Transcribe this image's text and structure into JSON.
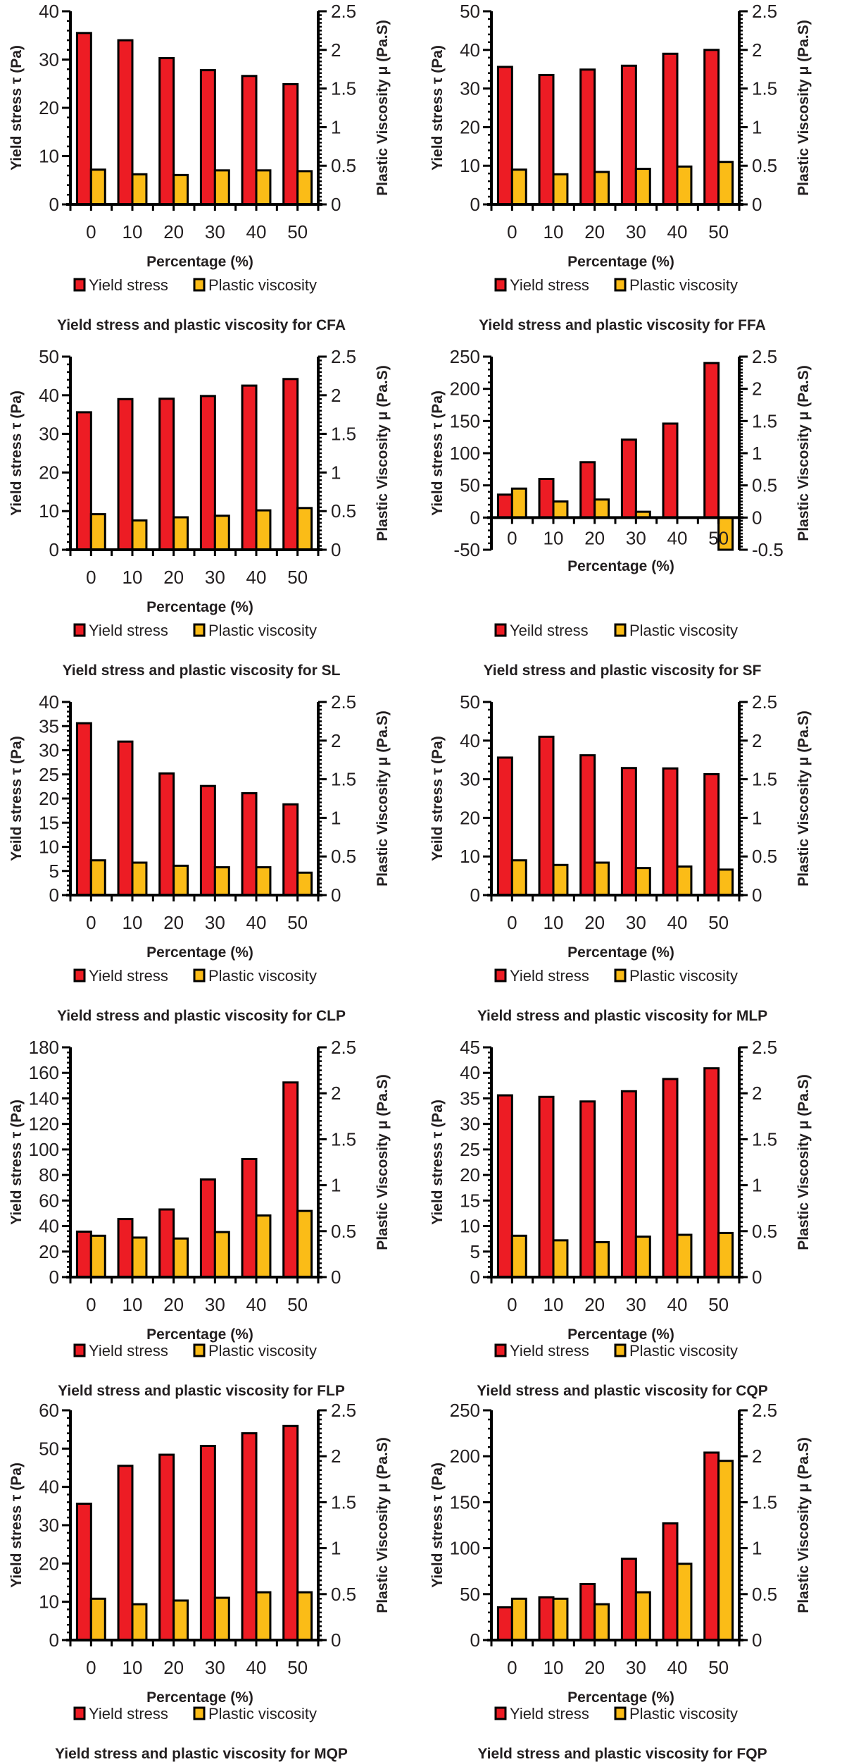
{
  "figure": {
    "colors": {
      "yield_stress": "#ed1c24",
      "plastic_viscosity": "#fbbc17",
      "outline": "#000000"
    }
  },
  "chart_data": [
    {
      "type": "bar",
      "title": "Yield stress and plastic viscosity for CFA",
      "xlabel": "Percentage (%)",
      "ylabel": "Yield stress τ (Pa)",
      "y2label": "Plastic Viscosity μ (Pa.S)",
      "categories": [
        "0",
        "10",
        "20",
        "30",
        "40",
        "50"
      ],
      "ylim": [
        0,
        40
      ],
      "yticks": [
        0,
        10,
        20,
        30,
        40
      ],
      "y2lim": [
        0,
        2.5
      ],
      "y2ticks": [
        0,
        0.5,
        1,
        1.5,
        2,
        2.5
      ],
      "legend_position": "bottom",
      "series": [
        {
          "name": "Yield stress",
          "axis": "left",
          "values": [
            35.5,
            34.0,
            30.3,
            27.8,
            26.6,
            24.9
          ]
        },
        {
          "name": "Plastic viscosity",
          "axis": "right",
          "values": [
            0.45,
            0.39,
            0.38,
            0.44,
            0.44,
            0.43
          ]
        }
      ]
    },
    {
      "type": "bar",
      "title": "Yield stress and plastic viscosity for FFA",
      "xlabel": "Percentage (%)",
      "ylabel": "Yield stress τ (Pa)",
      "y2label": "Plastic Viscosity μ (Pa.S)",
      "categories": [
        "0",
        "10",
        "20",
        "30",
        "40",
        "50"
      ],
      "ylim": [
        0,
        50
      ],
      "yticks": [
        0,
        10,
        20,
        30,
        40,
        50
      ],
      "y2lim": [
        0,
        2.5
      ],
      "y2ticks": [
        0,
        0.5,
        1,
        1.5,
        2,
        2.5
      ],
      "legend_position": "bottom",
      "series": [
        {
          "name": "Yield stress",
          "axis": "left",
          "values": [
            35.6,
            33.5,
            34.9,
            35.9,
            39.0,
            40.0
          ]
        },
        {
          "name": "Plastic viscosity",
          "axis": "right",
          "values": [
            0.45,
            0.39,
            0.42,
            0.46,
            0.49,
            0.55
          ]
        }
      ]
    },
    {
      "type": "bar",
      "title": "Yield stress and plastic viscosity for SL",
      "xlabel": "Percentage (%)",
      "ylabel": "Yield stress τ (Pa)",
      "y2label": "Plastic Viscosity μ (Pa.S)",
      "categories": [
        "0",
        "10",
        "20",
        "30",
        "40",
        "50"
      ],
      "ylim": [
        0,
        50
      ],
      "yticks": [
        0,
        10,
        20,
        30,
        40,
        50
      ],
      "y2lim": [
        0,
        2.5
      ],
      "y2ticks": [
        0,
        0.5,
        1,
        1.5,
        2,
        2.5
      ],
      "legend_position": "bottom",
      "series": [
        {
          "name": "Yield stress",
          "axis": "left",
          "values": [
            35.6,
            39.0,
            39.1,
            39.8,
            42.5,
            44.2
          ]
        },
        {
          "name": "Plastic viscosity",
          "axis": "right",
          "values": [
            0.46,
            0.38,
            0.42,
            0.44,
            0.51,
            0.54
          ]
        }
      ]
    },
    {
      "type": "bar",
      "title": "Yield stress and plastic viscosity for SF",
      "xlabel": "Percentage (%)",
      "ylabel": "Yield stress τ (Pa)",
      "y2label": "Plastic Viscosity μ (Pa.S)",
      "categories": [
        "0",
        "10",
        "20",
        "30",
        "40",
        "50"
      ],
      "ylim": [
        -50,
        250
      ],
      "yticks": [
        -50,
        0,
        50,
        100,
        150,
        200,
        250
      ],
      "y2lim": [
        -0.5,
        2.5
      ],
      "y2ticks": [
        -0.5,
        0,
        0.5,
        1,
        1.5,
        2,
        2.5
      ],
      "legend_position": "bottom",
      "series": [
        {
          "name": "Yeild stress",
          "axis": "left",
          "values": [
            35.6,
            60.0,
            86.0,
            121.0,
            146.0,
            240.0
          ]
        },
        {
          "name": "Plastic viscosity",
          "axis": "right",
          "values": [
            0.45,
            0.25,
            0.28,
            0.09,
            0.0,
            -0.5
          ]
        }
      ]
    },
    {
      "type": "bar",
      "title": "Yield stress and plastic viscosity for CLP",
      "xlabel": "Percentage (%)",
      "ylabel": "Yeild stress τ (Pa)",
      "y2label": "Plastic Viscosity μ (Pa.S)",
      "categories": [
        "0",
        "10",
        "20",
        "30",
        "40",
        "50"
      ],
      "ylim": [
        0,
        40
      ],
      "yticks": [
        0,
        5,
        10,
        15,
        20,
        25,
        30,
        35,
        40
      ],
      "y2lim": [
        0,
        2.5
      ],
      "y2ticks": [
        0,
        0.5,
        1,
        1.5,
        2,
        2.5
      ],
      "legend_position": "bottom",
      "series": [
        {
          "name": "Yield stress",
          "axis": "left",
          "values": [
            35.6,
            31.8,
            25.2,
            22.6,
            21.1,
            18.8
          ]
        },
        {
          "name": "Plastic viscosity",
          "axis": "right",
          "values": [
            0.45,
            0.42,
            0.38,
            0.36,
            0.36,
            0.29
          ]
        }
      ]
    },
    {
      "type": "bar",
      "title": "Yield stress and plastic viscosity for MLP",
      "xlabel": "Percentage (%)",
      "ylabel": "Yeild stress τ (Pa)",
      "y2label": "Plastic Viscosity μ (Pa.S)",
      "categories": [
        "0",
        "10",
        "20",
        "30",
        "40",
        "50"
      ],
      "ylim": [
        0,
        50
      ],
      "yticks": [
        0,
        10,
        20,
        30,
        40,
        50
      ],
      "y2lim": [
        0,
        2.5
      ],
      "y2ticks": [
        0,
        0.5,
        1,
        1.5,
        2,
        2.5
      ],
      "legend_position": "bottom",
      "series": [
        {
          "name": "Yield stress",
          "axis": "left",
          "values": [
            35.6,
            41.0,
            36.2,
            32.9,
            32.8,
            31.3
          ]
        },
        {
          "name": "Plastic viscosity",
          "axis": "right",
          "values": [
            0.45,
            0.39,
            0.42,
            0.35,
            0.37,
            0.33
          ]
        }
      ]
    },
    {
      "type": "bar",
      "title": "Yield stress and plastic viscosity for FLP",
      "xlabel": "Percentage (%)",
      "ylabel": "Yield stress τ (Pa)",
      "y2label": "Plastic Viscosity μ (Pa.S)",
      "categories": [
        "0",
        "10",
        "20",
        "30",
        "40",
        "50"
      ],
      "ylim": [
        0,
        180
      ],
      "yticks": [
        0,
        20,
        40,
        60,
        80,
        100,
        120,
        140,
        160,
        180
      ],
      "y2lim": [
        0,
        2.5
      ],
      "y2ticks": [
        0,
        0.5,
        1,
        1.5,
        2,
        2.5
      ],
      "legend_position": "bottom",
      "series": [
        {
          "name": "Yield stress",
          "axis": "left",
          "values": [
            35.6,
            45.5,
            53.0,
            76.5,
            92.5,
            152.5
          ]
        },
        {
          "name": "Plastic viscosity",
          "axis": "right",
          "values": [
            0.45,
            0.43,
            0.42,
            0.49,
            0.67,
            0.72
          ]
        }
      ]
    },
    {
      "type": "bar",
      "title": "Yield stress and plastic viscosity for CQP",
      "xlabel": "Percentage (%)",
      "ylabel": "Yield stress τ (Pa)",
      "y2label": "Plastic Viscosity μ (Pa.S)",
      "categories": [
        "0",
        "10",
        "20",
        "30",
        "40",
        "50"
      ],
      "ylim": [
        0,
        45
      ],
      "yticks": [
        0,
        5,
        10,
        15,
        20,
        25,
        30,
        35,
        40,
        45
      ],
      "y2lim": [
        0,
        2.5
      ],
      "y2ticks": [
        0,
        0.5,
        1,
        1.5,
        2,
        2.5
      ],
      "legend_position": "bottom",
      "series": [
        {
          "name": "Yield stress",
          "axis": "left",
          "values": [
            35.6,
            35.3,
            34.4,
            36.4,
            38.8,
            40.9
          ]
        },
        {
          "name": "Plastic viscosity",
          "axis": "right",
          "values": [
            0.45,
            0.4,
            0.38,
            0.44,
            0.46,
            0.48
          ]
        }
      ]
    },
    {
      "type": "bar",
      "title": "Yield stress and plastic viscosity for MQP",
      "xlabel": "Percentage (%)",
      "ylabel": "Yield stress τ (Pa)",
      "y2label": "Plastic Viscosity μ (Pa.S)",
      "categories": [
        "0",
        "10",
        "20",
        "30",
        "40",
        "50"
      ],
      "ylim": [
        0,
        60
      ],
      "yticks": [
        0,
        10,
        20,
        30,
        40,
        50,
        60
      ],
      "y2lim": [
        0,
        2.5
      ],
      "y2ticks": [
        0,
        0.5,
        1,
        1.5,
        2,
        2.5
      ],
      "legend_position": "bottom",
      "series": [
        {
          "name": "Yield stress",
          "axis": "left",
          "values": [
            35.6,
            45.5,
            48.4,
            50.7,
            54.0,
            55.9
          ]
        },
        {
          "name": "Plastic viscosity",
          "axis": "right",
          "values": [
            0.45,
            0.39,
            0.43,
            0.46,
            0.52,
            0.52
          ]
        }
      ]
    },
    {
      "type": "bar",
      "title": "Yield stress and plastic viscosity for FQP",
      "xlabel": "Percentage (%)",
      "ylabel": "Yield stress τ (Pa)",
      "y2label": "Plastic Viscosity μ (Pa.S)",
      "categories": [
        "0",
        "10",
        "20",
        "30",
        "40",
        "50"
      ],
      "ylim": [
        0,
        250
      ],
      "yticks": [
        0,
        50,
        100,
        150,
        200,
        250
      ],
      "y2lim": [
        0,
        2.5
      ],
      "y2ticks": [
        0,
        0.5,
        1,
        1.5,
        2,
        2.5
      ],
      "legend_position": "bottom",
      "series": [
        {
          "name": "Yield stress",
          "axis": "left",
          "values": [
            35.6,
            46.5,
            61.0,
            88.5,
            127.0,
            204.0
          ]
        },
        {
          "name": "Plastic viscosity",
          "axis": "right",
          "values": [
            0.45,
            0.45,
            0.39,
            0.52,
            0.83,
            1.95
          ]
        }
      ]
    }
  ]
}
